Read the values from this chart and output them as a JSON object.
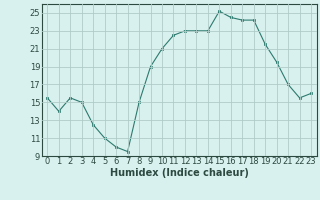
{
  "x": [
    0,
    1,
    2,
    3,
    4,
    5,
    6,
    7,
    8,
    9,
    10,
    11,
    12,
    13,
    14,
    15,
    16,
    17,
    18,
    19,
    20,
    21,
    22,
    23
  ],
  "y": [
    15.5,
    14.0,
    15.5,
    15.0,
    12.5,
    11.0,
    10.0,
    9.5,
    15.0,
    19.0,
    21.0,
    22.5,
    23.0,
    23.0,
    23.0,
    25.2,
    24.5,
    24.2,
    24.2,
    21.5,
    19.5,
    17.0,
    15.5,
    16.0
  ],
  "line_color": "#2d7a6e",
  "marker_color": "#2d7a6e",
  "bg_color": "#d8f0ee",
  "plot_bg_color": "#d8f0ee",
  "grid_color": "#b0ccc8",
  "xlabel": "Humidex (Indice chaleur)",
  "ylim": [
    9,
    26
  ],
  "xlim": [
    -0.5,
    23.5
  ],
  "yticks": [
    9,
    11,
    13,
    15,
    17,
    19,
    21,
    23,
    25
  ],
  "xticks": [
    0,
    1,
    2,
    3,
    4,
    5,
    6,
    7,
    8,
    9,
    10,
    11,
    12,
    13,
    14,
    15,
    16,
    17,
    18,
    19,
    20,
    21,
    22,
    23
  ],
  "font_color": "#2d4a40",
  "xlabel_fontsize": 7,
  "tick_fontsize": 6
}
